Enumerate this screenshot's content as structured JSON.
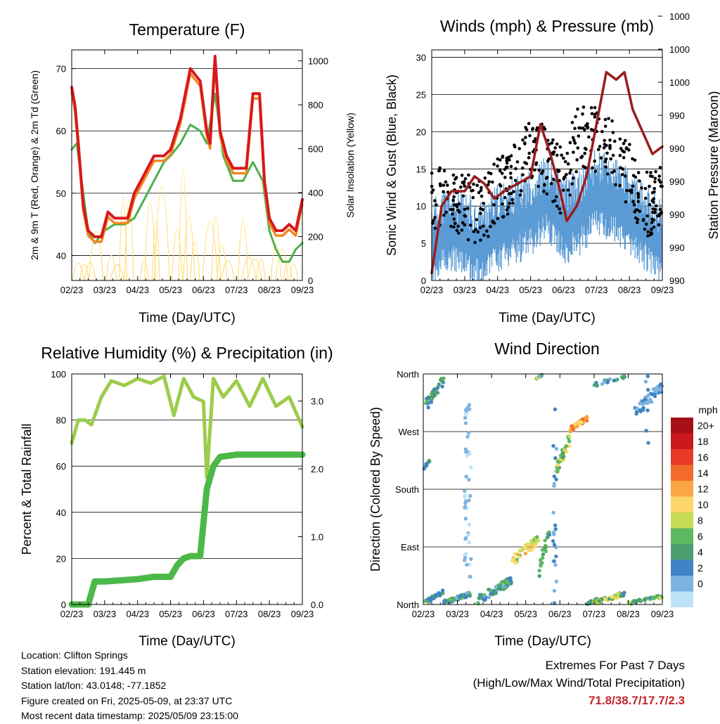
{
  "panels": {
    "temperature": {
      "title": "Temperature (F)",
      "ylabel_left": "2m & 9m T (Red, Orange) & 2m Td (Green)",
      "ylabel_right": "Solar Insolation (Yellow)",
      "xlabel": "Time (Day/UTC)"
    },
    "winds": {
      "title": "Winds (mph) & Pressure (mb)",
      "ylabel_left": "Sonic Wind & Gust (Blue, Black)",
      "ylabel_right": "Station Pressure (Maroon)",
      "xlabel": "Time (Day/UTC)"
    },
    "humidity": {
      "title": "Relative Humidity (%) & Precipitation (in)",
      "ylabel_left": "Percent & Total Rainfall",
      "xlabel": "Time (Day/UTC)"
    },
    "direction": {
      "title": "Wind Direction",
      "ylabel_left": "Direction (Colored By Speed)",
      "xlabel": "Time (Day/UTC)",
      "colorbar_title": "mph"
    }
  },
  "info": {
    "location": "Location: Clifton Springs",
    "elevation": "Station elevation: 191.445 m",
    "latlon": "Station lat/lon: 43.0148; -77.1852",
    "created": "Figure created on Fri, 2025-05-09, at 23:37 UTC",
    "recent": "Most recent data timestamp: 2025/05/09 23:15:00"
  },
  "extremes": {
    "line1": "Extremes For Past 7 Days",
    "line2": "(High/Low/Max Wind/Total Precipitation)",
    "values": "71.8/38.7/17.7/2.3"
  },
  "colors": {
    "temp2m": "#d7191c",
    "temp9m": "#f08a24",
    "dewpoint": "#4daf4a",
    "solar": "#ffd966",
    "wind": "#5b9bd5",
    "gust": "#000000",
    "pressure": "#9b1c1c",
    "rh": "#9ccc4c",
    "precip": "#4cb848"
  },
  "chart_data": [
    {
      "type": "line",
      "name": "temperature",
      "x_ticks": [
        "02/23",
        "03/23",
        "04/23",
        "05/23",
        "06/23",
        "07/23",
        "08/23",
        "09/23"
      ],
      "ylim": [
        36,
        73
      ],
      "yticks": [
        40,
        50,
        60,
        70
      ],
      "y2lim": [
        0,
        1050
      ],
      "y2ticks": [
        0,
        200,
        400,
        600,
        800,
        1000
      ],
      "series": [
        {
          "x": [
            0,
            0.1,
            0.2,
            0.35,
            0.5,
            0.7,
            0.9,
            1.1,
            1.3,
            1.5,
            1.7,
            1.9,
            2.2,
            2.5,
            2.8,
            3.0,
            3.3,
            3.6,
            3.9,
            4.1,
            4.2,
            4.35,
            4.5,
            4.7,
            4.9,
            5.1,
            5.3,
            5.5,
            5.7,
            5.85,
            6.0,
            6.2,
            6.4,
            6.6,
            6.8,
            7.0
          ],
          "y": [
            67,
            64,
            58,
            48,
            44,
            43,
            43,
            47,
            46,
            46,
            46,
            50,
            53,
            56,
            56,
            57,
            62,
            70,
            68,
            60,
            58,
            72,
            60,
            56,
            54,
            54,
            54,
            66,
            66,
            52,
            46,
            44,
            44,
            45,
            44,
            49
          ]
        },
        {
          "x": [
            0,
            0.15,
            0.3,
            0.5,
            0.7,
            1.0,
            1.3,
            1.6,
            1.9,
            2.2,
            2.5,
            2.8,
            3.0,
            3.3,
            3.6,
            3.9,
            4.1,
            4.35,
            4.6,
            4.9,
            5.2,
            5.5,
            5.8,
            6.0,
            6.2,
            6.4,
            6.6,
            6.8,
            7.0
          ],
          "y": [
            57,
            58,
            52,
            44,
            42,
            44,
            45,
            45,
            46,
            49,
            52,
            55,
            56,
            58,
            61,
            60,
            58,
            66,
            56,
            52,
            52,
            55,
            52,
            44,
            41,
            39,
            39,
            41,
            42
          ]
        }
      ]
    },
    {
      "type": "line",
      "name": "winds-pressure",
      "x_ticks": [
        "02/23",
        "03/23",
        "04/23",
        "05/23",
        "06/23",
        "07/23",
        "08/23",
        "09/23"
      ],
      "ylim": [
        0,
        31
      ],
      "yticks": [
        0,
        5,
        10,
        15,
        20,
        25,
        30
      ],
      "y2_tick_labels": [
        "990",
        "990",
        "990",
        "990",
        "990",
        "990",
        "1000",
        "1000",
        "1000"
      ],
      "series": [
        {
          "x": [
            0,
            0.3,
            0.6,
            1.0,
            1.3,
            1.6,
            1.9,
            2.2,
            2.6,
            3.0,
            3.3,
            3.6,
            3.9,
            4.1,
            4.4,
            4.7,
            5.0,
            5.3,
            5.6,
            5.85,
            6.1,
            6.4,
            6.7,
            7.0
          ],
          "y": [
            1,
            10,
            12,
            12,
            14,
            13,
            11,
            12,
            13,
            14,
            21,
            17,
            12,
            8,
            10,
            14,
            21,
            28,
            27,
            28,
            23,
            20,
            17,
            18
          ]
        },
        {
          "x": [
            0,
            0.5,
            1,
            1.5,
            2,
            2.5,
            3,
            3.5,
            4,
            4.5,
            5,
            5.5,
            6,
            6.5,
            7
          ],
          "y": [
            6,
            8,
            7,
            6,
            8,
            9,
            10,
            12,
            9,
            10,
            13,
            12,
            10,
            8,
            6
          ]
        },
        {
          "x": [
            0,
            0.5,
            1,
            1.5,
            2,
            2.5,
            3,
            3.5,
            4,
            4.5,
            5,
            5.5,
            6,
            6.5,
            7
          ],
          "y": [
            11,
            12,
            10,
            9,
            12,
            14,
            18,
            16,
            13,
            20,
            19,
            17,
            14,
            10,
            12
          ]
        }
      ]
    },
    {
      "type": "line",
      "name": "humidity-precipitation",
      "x_ticks": [
        "02/23",
        "03/23",
        "04/23",
        "05/23",
        "06/23",
        "07/23",
        "08/23",
        "09/23"
      ],
      "ylim": [
        0,
        100
      ],
      "yticks": [
        0,
        20,
        40,
        60,
        80,
        100
      ],
      "y2_tick_labels": [
        "0.0",
        "1.0",
        "2.0",
        "3.0"
      ],
      "series": [
        {
          "x": [
            0,
            0.2,
            0.4,
            0.6,
            0.9,
            1.2,
            1.6,
            2.0,
            2.4,
            2.8,
            3.1,
            3.4,
            3.7,
            4.0,
            4.1,
            4.3,
            4.6,
            5.0,
            5.4,
            5.8,
            6.2,
            6.6,
            7.0
          ],
          "y": [
            70,
            80,
            80,
            78,
            90,
            97,
            95,
            98,
            96,
            99,
            82,
            98,
            90,
            88,
            55,
            98,
            90,
            97,
            86,
            98,
            86,
            90,
            77
          ]
        },
        {
          "x": [
            0,
            0.5,
            0.7,
            1.0,
            1.5,
            2.0,
            2.5,
            3.0,
            3.2,
            3.4,
            3.6,
            3.9,
            4.1,
            4.3,
            4.5,
            5.0,
            5.5,
            6.0,
            7.0
          ],
          "y": [
            0,
            0,
            10,
            10,
            10.5,
            11,
            12,
            12,
            17,
            20,
            21,
            21,
            50,
            60,
            64,
            65,
            65,
            65,
            65
          ]
        }
      ]
    },
    {
      "type": "scatter",
      "name": "wind-direction",
      "x_ticks": [
        "02/23",
        "03/23",
        "04/23",
        "05/23",
        "06/23",
        "07/23",
        "08/23",
        "09/23"
      ],
      "y_tick_labels": [
        "North",
        "East",
        "South",
        "West",
        "North"
      ],
      "colorbar_labels": [
        "20+",
        "18",
        "16",
        "14",
        "12",
        "10",
        "8",
        "6",
        "4",
        "2",
        "0"
      ],
      "colorbar_colors": [
        "#a50f15",
        "#cb181d",
        "#e83a26",
        "#f26b2b",
        "#fba544",
        "#fdd66a",
        "#c7dc55",
        "#5db961",
        "#4b9e6e",
        "#3f84c4",
        "#7db3e1",
        "#bde1f7"
      ]
    }
  ]
}
